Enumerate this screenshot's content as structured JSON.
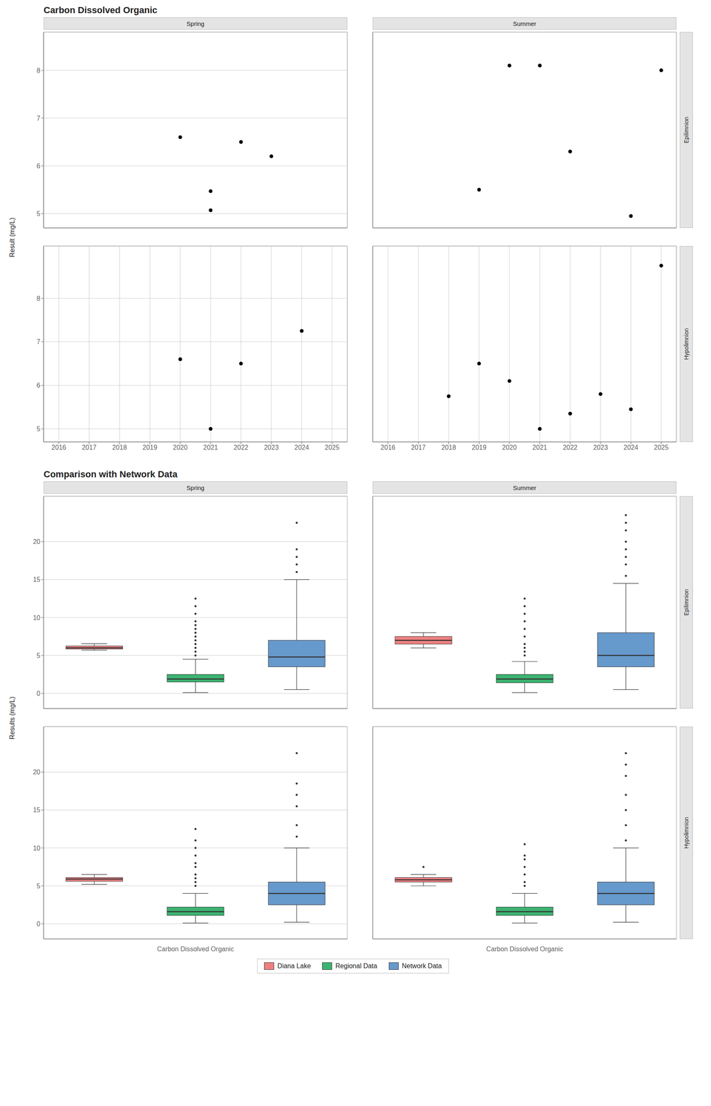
{
  "chart_data": [
    {
      "type": "scatter",
      "title": "Carbon Dissolved Organic",
      "ylabel": "Result (mg/L)",
      "xlim": [
        2015.5,
        2025.5
      ],
      "xticks": [
        2016,
        2017,
        2018,
        2019,
        2020,
        2021,
        2022,
        2023,
        2024,
        2025
      ],
      "grid": true,
      "color": "#000000",
      "facets": [
        {
          "column": "Spring",
          "row": "Epilimnion",
          "x": [
            2020,
            2021,
            2021,
            2022,
            2023
          ],
          "values": [
            6.6,
            5.07,
            5.47,
            6.5,
            6.2
          ],
          "ylim": [
            4.7,
            8.8
          ],
          "yticks": [
            5,
            6,
            7,
            8
          ]
        },
        {
          "column": "Summer",
          "row": "Epilimnion",
          "x": [
            2019,
            2020,
            2021,
            2022,
            2024,
            2025
          ],
          "values": [
            5.5,
            8.1,
            8.1,
            6.3,
            4.95,
            8.0
          ],
          "ylim": [
            4.7,
            8.8
          ],
          "yticks": [
            5,
            6,
            7,
            8
          ]
        },
        {
          "column": "Spring",
          "row": "Hypolimnion",
          "x": [
            2020,
            2021,
            2022,
            2024
          ],
          "values": [
            6.6,
            5.0,
            6.5,
            7.25
          ],
          "ylim": [
            4.7,
            9.2
          ],
          "yticks": [
            5,
            6,
            7,
            8
          ]
        },
        {
          "column": "Summer",
          "row": "Hypolimnion",
          "x": [
            2018,
            2019,
            2020,
            2021,
            2022,
            2023,
            2024,
            2025
          ],
          "values": [
            5.75,
            6.5,
            6.1,
            5.0,
            5.35,
            5.8,
            5.45,
            8.75
          ],
          "ylim": [
            4.7,
            9.2
          ],
          "yticks": [
            5,
            6,
            7,
            8
          ]
        }
      ]
    },
    {
      "type": "box",
      "title": "Comparison with Network Data",
      "ylabel": "Results (mg/L)",
      "categories": [
        "Carbon Dissolved Organic"
      ],
      "ylim": [
        -2,
        26
      ],
      "yticks": [
        0,
        5,
        10,
        15,
        20
      ],
      "grid": true,
      "legend": "bottom",
      "series": [
        {
          "name": "Diana Lake",
          "color": "#F08080"
        },
        {
          "name": "Regional Data",
          "color": "#3CB371"
        },
        {
          "name": "Network Data",
          "color": "#6699CC"
        }
      ],
      "facets": [
        {
          "column": "Spring",
          "row": "Epilimnion",
          "boxes": [
            {
              "median": 6.0,
              "q1": 5.85,
              "q3": 6.25,
              "whislo": 5.7,
              "whishi": 6.55,
              "fliers": []
            },
            {
              "median": 1.9,
              "q1": 1.5,
              "q3": 2.5,
              "whislo": 0.1,
              "whishi": 4.5,
              "fliers": [
                5.0,
                5.5,
                6.0,
                6.5,
                7.0,
                7.5,
                8.0,
                8.5,
                9.0,
                9.5,
                10.5,
                11.5,
                12.5
              ]
            },
            {
              "median": 4.8,
              "q1": 3.5,
              "q3": 7.0,
              "whislo": 0.5,
              "whishi": 15.0,
              "fliers": [
                16.0,
                17.0,
                18.0,
                19.0,
                22.5
              ]
            }
          ]
        },
        {
          "column": "Summer",
          "row": "Epilimnion",
          "boxes": [
            {
              "median": 7.0,
              "q1": 6.5,
              "q3": 7.5,
              "whislo": 6.0,
              "whishi": 8.0,
              "fliers": []
            },
            {
              "median": 1.9,
              "q1": 1.4,
              "q3": 2.5,
              "whislo": 0.1,
              "whishi": 4.2,
              "fliers": [
                5.0,
                5.5,
                6.0,
                6.5,
                7.5,
                8.5,
                9.5,
                10.5,
                11.5,
                12.5
              ]
            },
            {
              "median": 5.0,
              "q1": 3.5,
              "q3": 8.0,
              "whislo": 0.5,
              "whishi": 14.5,
              "fliers": [
                15.5,
                17.0,
                18.0,
                19.0,
                20.0,
                21.5,
                22.5,
                23.5
              ]
            }
          ]
        },
        {
          "column": "Spring",
          "row": "Hypolimnion",
          "boxes": [
            {
              "median": 5.9,
              "q1": 5.6,
              "q3": 6.1,
              "whislo": 5.2,
              "whishi": 6.5,
              "fliers": []
            },
            {
              "median": 1.6,
              "q1": 1.1,
              "q3": 2.2,
              "whislo": 0.1,
              "whishi": 4.0,
              "fliers": [
                5.0,
                5.5,
                6.0,
                6.5,
                7.5,
                8.0,
                9.0,
                10.0,
                11.0,
                12.5
              ]
            },
            {
              "median": 4.0,
              "q1": 2.5,
              "q3": 5.5,
              "whislo": 0.2,
              "whishi": 10.0,
              "fliers": [
                11.5,
                13.0,
                15.5,
                17.0,
                18.5,
                22.5
              ]
            }
          ]
        },
        {
          "column": "Summer",
          "row": "Hypolimnion",
          "boxes": [
            {
              "median": 5.8,
              "q1": 5.5,
              "q3": 6.1,
              "whislo": 5.0,
              "whishi": 6.5,
              "fliers": [
                7.5
              ]
            },
            {
              "median": 1.6,
              "q1": 1.1,
              "q3": 2.2,
              "whislo": 0.1,
              "whishi": 4.0,
              "fliers": [
                5.0,
                5.5,
                6.5,
                7.5,
                8.5,
                9.0,
                10.5
              ]
            },
            {
              "median": 4.0,
              "q1": 2.5,
              "q3": 5.5,
              "whislo": 0.2,
              "whishi": 10.0,
              "fliers": [
                11.0,
                13.0,
                15.0,
                17.0,
                19.5,
                21.0,
                22.5
              ]
            }
          ]
        }
      ]
    }
  ]
}
